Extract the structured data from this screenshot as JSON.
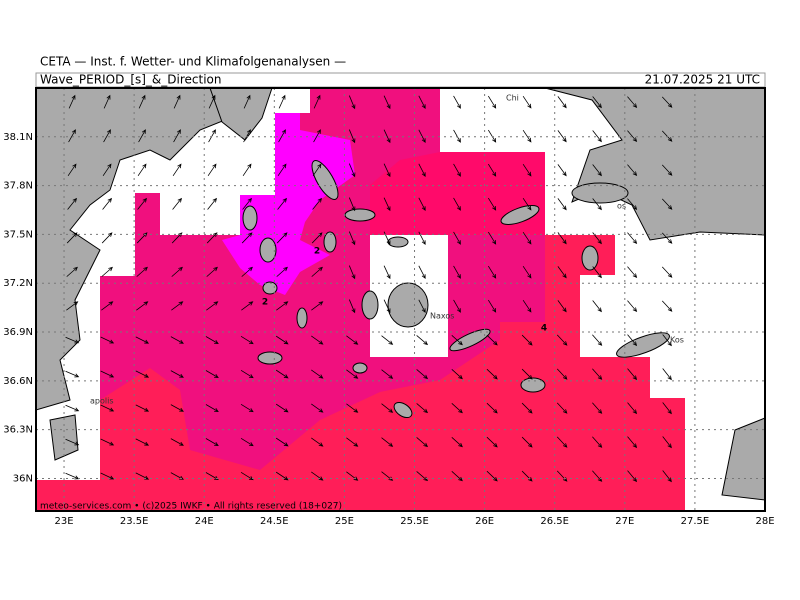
{
  "header": {
    "institute": "CETA — Inst. f. Wetter- und Klimafolgenanalysen —",
    "title": "Wave_PERIOD_[s]_&_Direction",
    "valid_time": "21.07.2025 21 UTC"
  },
  "map": {
    "lon_range": [
      22.8,
      28
    ],
    "lat_range": [
      35.8,
      38.4
    ],
    "lon_ticks": [
      {
        "value": 23,
        "label": "23E"
      },
      {
        "value": 23.5,
        "label": "23.5E"
      },
      {
        "value": 24,
        "label": "24E"
      },
      {
        "value": 24.5,
        "label": "24.5E"
      },
      {
        "value": 25,
        "label": "25E"
      },
      {
        "value": 25.5,
        "label": "25.5E"
      },
      {
        "value": 26,
        "label": "26E"
      },
      {
        "value": 26.5,
        "label": "26.5E"
      },
      {
        "value": 27,
        "label": "27E"
      },
      {
        "value": 27.5,
        "label": "27.5E"
      },
      {
        "value": 28,
        "label": "28E"
      }
    ],
    "lat_ticks": [
      {
        "value": 36,
        "label": "36N"
      },
      {
        "value": 36.3,
        "label": "36.3N"
      },
      {
        "value": 36.6,
        "label": "36.6N"
      },
      {
        "value": 36.9,
        "label": "36.9N"
      },
      {
        "value": 37.2,
        "label": "37.2N"
      },
      {
        "value": 37.5,
        "label": "37.5N"
      },
      {
        "value": 37.8,
        "label": "37.8N"
      },
      {
        "value": 38.1,
        "label": "38.1N"
      }
    ],
    "contour_labels": [
      "2",
      "2",
      "4"
    ],
    "place_names": [
      "Chi",
      "Naxos",
      "Kos",
      "apolis",
      "os"
    ]
  },
  "footer": "meteo-services.com • (c)2025 IWKF • All rights reserved (18+027)"
}
